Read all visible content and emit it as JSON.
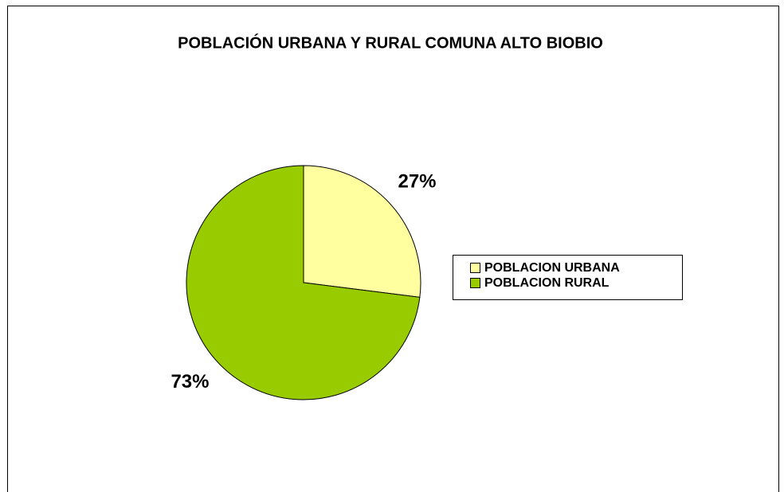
{
  "chart_data": {
    "type": "pie",
    "title": "POBLACIÓN URBANA Y RURAL COMUNA ALTO BIOBIO",
    "categories": [
      "POBLACION URBANA",
      "POBLACION RURAL"
    ],
    "values": [
      27,
      73
    ],
    "value_labels": [
      "27%",
      "73%"
    ],
    "colors": [
      "#ffffa0",
      "#99cc00"
    ],
    "legend": "right"
  }
}
